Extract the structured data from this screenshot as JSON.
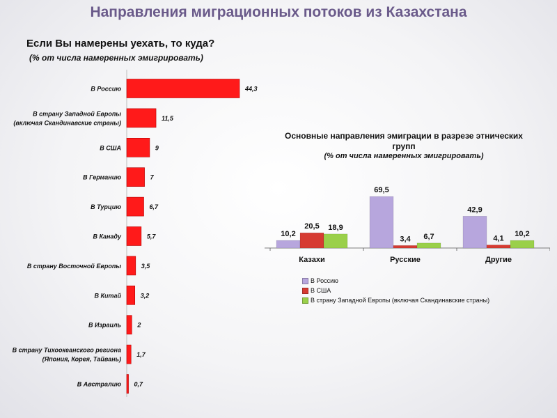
{
  "slide_title": "Направления миграционных потоков из Казахстана",
  "chart_data": [
    {
      "type": "bar",
      "orientation": "horizontal",
      "title": "Если Вы намерены уехать, то куда?",
      "subtitle": "(% от числа намеренных эмигрировать)",
      "categories": [
        [
          "В Россию"
        ],
        [
          "В страну Западной Европы",
          "(включая Скандинавские страны)"
        ],
        [
          "В США"
        ],
        [
          "В Германию"
        ],
        [
          "В Турцию"
        ],
        [
          "В Канаду"
        ],
        [
          "В страну Восточной Европы"
        ],
        [
          "В Китай"
        ],
        [
          "В Израиль"
        ],
        [
          "В страну Тихоокеанского  региона",
          "(Япония,  Корея, Тайвань)"
        ],
        [
          "В Австралию"
        ]
      ],
      "values": [
        44.3,
        11.5,
        9,
        7,
        6.7,
        5.7,
        3.5,
        3.2,
        2,
        1.7,
        0.7
      ],
      "value_labels": [
        "44,3",
        "11,5",
        "9",
        "7",
        "6,7",
        "5,7",
        "3,5",
        "3,2",
        "2",
        "1,7",
        "0,7"
      ],
      "color": "#ff1a1a",
      "grid": false
    },
    {
      "type": "bar",
      "orientation": "vertical",
      "title": "Основные  направления эмиграции в разрезе этнических групп",
      "subtitle": "(% от числа намеренных эмигрировать)",
      "categories": [
        "Казахи",
        "Русские",
        "Другие"
      ],
      "series": [
        {
          "name": "В Россию",
          "values": [
            10.2,
            69.5,
            42.9
          ],
          "labels": [
            "10,2",
            "69,5",
            "42,9"
          ],
          "color": "#b7a6dd"
        },
        {
          "name": "В США",
          "values": [
            20.5,
            3.4,
            4.1
          ],
          "labels": [
            "20,5",
            "3,4",
            "4,1"
          ],
          "color": "#d63b32"
        },
        {
          "name": "В страну Западной Европы (включая Скандинавские страны)",
          "values": [
            18.9,
            6.7,
            10.2
          ],
          "labels": [
            "18,9",
            "6,7",
            "10,2"
          ],
          "color": "#9ad04a"
        }
      ],
      "legend_position": "bottom-left",
      "grid": false
    }
  ]
}
